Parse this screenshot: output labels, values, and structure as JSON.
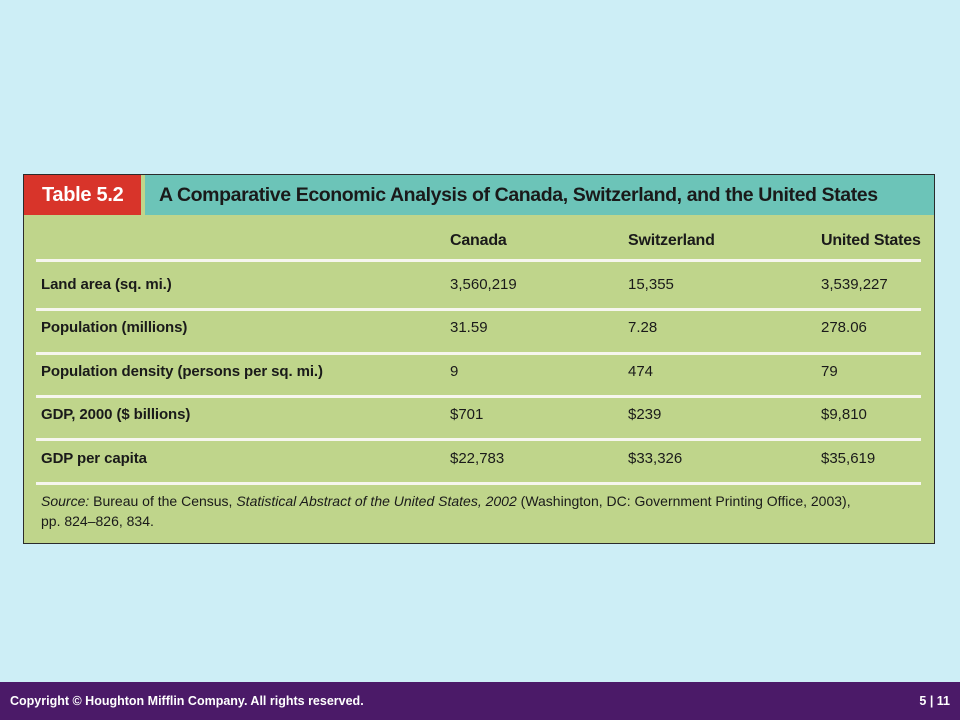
{
  "table": {
    "tag": "Table 5.2",
    "title": "A Comparative Economic Analysis of Canada, Switzerland, and the United States",
    "columns": [
      "Canada",
      "Switzerland",
      "United States"
    ],
    "rows": [
      {
        "label": "Land area (sq. mi.)",
        "values": [
          "3,560,219",
          "15,355",
          "3,539,227"
        ]
      },
      {
        "label": "Population (millions)",
        "values": [
          "31.59",
          "7.28",
          "278.06"
        ]
      },
      {
        "label": "Population density (persons per sq. mi.)",
        "values": [
          "9",
          "474",
          "79"
        ]
      },
      {
        "label": "GDP, 2000 ($ billions)",
        "values": [
          "$701",
          "$239",
          "$9,810"
        ]
      },
      {
        "label": "GDP per capita",
        "values": [
          "$22,783",
          "$33,326",
          "$35,619"
        ]
      }
    ],
    "source": {
      "label": "Source:",
      "text1": " Bureau of the Census, ",
      "publication": "Statistical Abstract of the United States, 2002",
      "text2": " (Washington, DC: Government Printing Office, 2003),",
      "line2": "pp. 824–826, 834."
    }
  },
  "footer": {
    "copyright": "Copyright © Houghton Mifflin Company. All rights reserved.",
    "slide_number": "5 | 11"
  },
  "colors": {
    "background": "#cdeef6",
    "table_bg": "#bfd58b",
    "title_bar": "#6cc4b8",
    "tag_red": "#d8342a",
    "footer": "#4b1a68"
  }
}
